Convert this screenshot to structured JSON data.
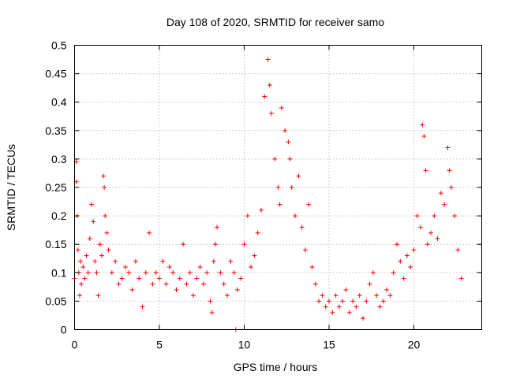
{
  "chart_data": {
    "type": "scatter",
    "title": "Day 108 of 2020, SRMTID for receiver samo",
    "xlabel": "GPS time / hours",
    "ylabel": "SRMTID / TECUs",
    "xlim": [
      0,
      24
    ],
    "ylim": [
      0,
      0.5
    ],
    "x_ticks": [
      0,
      5,
      10,
      15,
      20
    ],
    "y_ticks": [
      0,
      0.05,
      0.1,
      0.15,
      0.2,
      0.25,
      0.3,
      0.35,
      0.4,
      0.45,
      0.5
    ],
    "x_tick_labels": [
      "0",
      "5",
      "10",
      "15",
      "20"
    ],
    "y_tick_labels": [
      "0",
      "0.05",
      "0.1",
      "0.15",
      "0.2",
      "0.25",
      "0.3",
      "0.35",
      "0.4",
      "0.45",
      "0.5"
    ],
    "grid": true,
    "marker": "+",
    "series": [
      {
        "name": "SRMTID",
        "color": "#ff0000",
        "x": [
          0.0,
          0.1,
          0.1,
          0.15,
          0.2,
          0.25,
          0.3,
          0.35,
          0.4,
          0.5,
          0.6,
          0.7,
          0.8,
          0.9,
          1.0,
          1.1,
          1.2,
          1.3,
          1.4,
          1.5,
          1.6,
          1.7,
          1.75,
          1.8,
          1.9,
          2.0,
          2.2,
          2.4,
          2.6,
          2.8,
          3.0,
          3.2,
          3.4,
          3.6,
          3.8,
          4.0,
          4.2,
          4.4,
          4.6,
          4.8,
          5.0,
          5.2,
          5.4,
          5.6,
          5.8,
          6.0,
          6.2,
          6.4,
          6.6,
          6.8,
          7.0,
          7.2,
          7.4,
          7.6,
          7.8,
          8.0,
          8.1,
          8.2,
          8.3,
          8.4,
          8.6,
          8.8,
          9.0,
          9.2,
          9.4,
          9.5,
          9.6,
          9.8,
          10.0,
          10.2,
          10.4,
          10.6,
          10.8,
          11.0,
          11.2,
          11.4,
          11.5,
          11.6,
          11.8,
          12.0,
          12.1,
          12.2,
          12.4,
          12.6,
          12.7,
          12.8,
          13.0,
          13.2,
          13.4,
          13.6,
          13.8,
          14.0,
          14.2,
          14.4,
          14.6,
          14.8,
          15.0,
          15.2,
          15.4,
          15.6,
          15.8,
          16.0,
          16.2,
          16.4,
          16.6,
          16.8,
          17.0,
          17.2,
          17.4,
          17.6,
          17.8,
          18.0,
          18.2,
          18.4,
          18.6,
          18.8,
          19.0,
          19.2,
          19.4,
          19.6,
          19.8,
          20.0,
          20.2,
          20.4,
          20.5,
          20.6,
          20.7,
          20.8,
          21.0,
          21.2,
          21.4,
          21.6,
          21.8,
          22.0,
          22.1,
          22.2,
          22.4,
          22.6,
          22.8
        ],
        "y": [
          0.09,
          0.295,
          0.26,
          0.2,
          0.14,
          0.1,
          0.06,
          0.12,
          0.08,
          0.11,
          0.09,
          0.13,
          0.1,
          0.16,
          0.22,
          0.19,
          0.12,
          0.1,
          0.06,
          0.15,
          0.13,
          0.27,
          0.25,
          0.2,
          0.17,
          0.14,
          0.1,
          0.12,
          0.08,
          0.09,
          0.11,
          0.1,
          0.07,
          0.12,
          0.09,
          0.04,
          0.1,
          0.17,
          0.08,
          0.1,
          0.09,
          0.12,
          0.08,
          0.11,
          0.1,
          0.07,
          0.09,
          0.15,
          0.08,
          0.1,
          0.06,
          0.09,
          0.11,
          0.08,
          0.1,
          0.05,
          0.03,
          0.12,
          0.15,
          0.18,
          0.1,
          0.08,
          0.06,
          0.12,
          0.1,
          0.0,
          0.07,
          0.09,
          0.15,
          0.2,
          0.11,
          0.13,
          0.17,
          0.21,
          0.41,
          0.475,
          0.43,
          0.38,
          0.3,
          0.25,
          0.22,
          0.39,
          0.35,
          0.33,
          0.3,
          0.25,
          0.2,
          0.27,
          0.18,
          0.14,
          0.22,
          0.11,
          0.08,
          0.05,
          0.06,
          0.04,
          0.05,
          0.03,
          0.06,
          0.04,
          0.05,
          0.07,
          0.03,
          0.05,
          0.04,
          0.06,
          0.02,
          0.05,
          0.08,
          0.1,
          0.06,
          0.04,
          0.05,
          0.07,
          0.06,
          0.1,
          0.15,
          0.12,
          0.09,
          0.13,
          0.11,
          0.14,
          0.2,
          0.18,
          0.36,
          0.34,
          0.28,
          0.15,
          0.17,
          0.2,
          0.16,
          0.24,
          0.22,
          0.32,
          0.28,
          0.25,
          0.2,
          0.14,
          0.09
        ]
      }
    ]
  }
}
